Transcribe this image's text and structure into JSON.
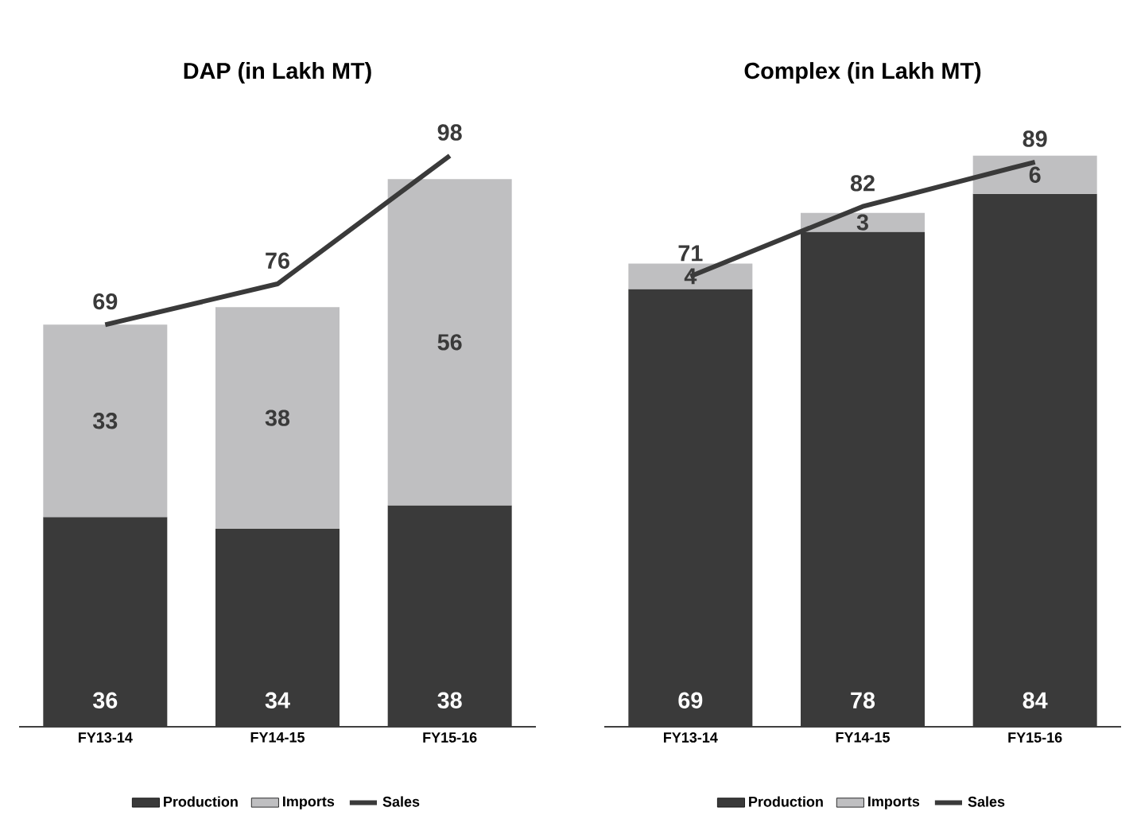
{
  "chart_data": [
    {
      "type": "bar",
      "title": "DAP (in Lakh MT)",
      "categories": [
        "FY13-14",
        "FY14-15",
        "FY15-16"
      ],
      "stacked": true,
      "data_labels": true,
      "legend": "bottom",
      "series": [
        {
          "name": "Production",
          "color": "#3a3a3a",
          "values": [
            36,
            34,
            38
          ]
        },
        {
          "name": "Imports",
          "color": "#bfbfc1",
          "values": [
            33,
            38,
            56
          ]
        },
        {
          "name": "Sales",
          "type": "line",
          "color": "#3a3a3a",
          "values": [
            69,
            76,
            98
          ]
        }
      ]
    },
    {
      "type": "bar",
      "title": "Complex (in Lakh MT)",
      "categories": [
        "FY13-14",
        "FY14-15",
        "FY15-16"
      ],
      "stacked": true,
      "data_labels": true,
      "legend": "bottom",
      "series": [
        {
          "name": "Production",
          "color": "#3a3a3a",
          "values": [
            69,
            78,
            84
          ]
        },
        {
          "name": "Imports",
          "color": "#bfbfc1",
          "values": [
            4,
            3,
            6
          ]
        },
        {
          "name": "Sales",
          "type": "line",
          "color": "#3a3a3a",
          "values": [
            71,
            82,
            89
          ]
        }
      ]
    }
  ]
}
